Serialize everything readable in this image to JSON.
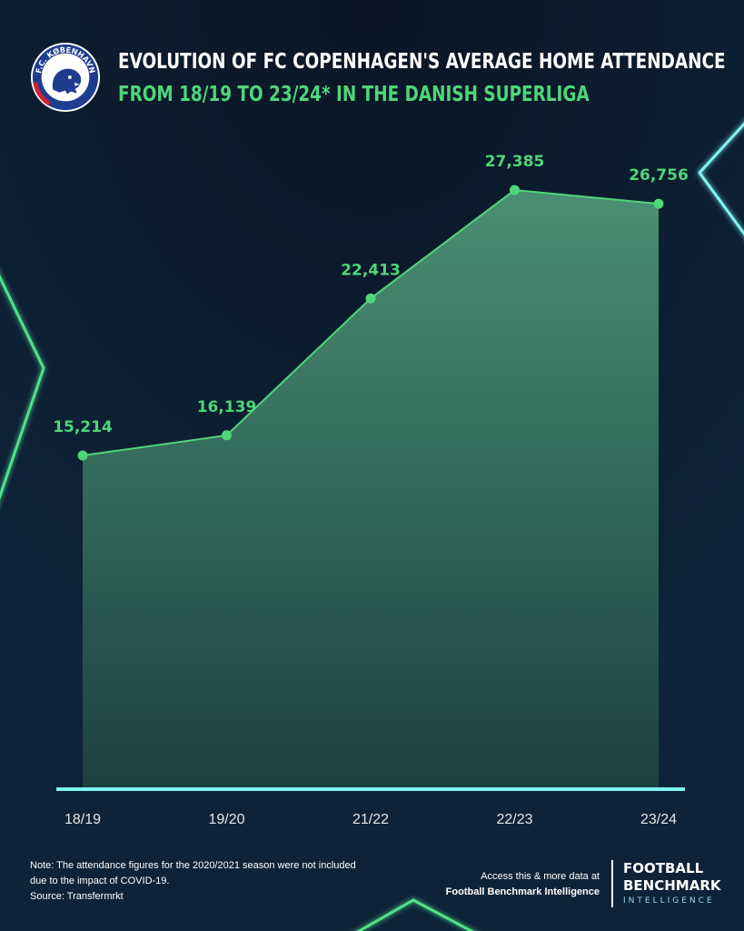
{
  "header": {
    "title": "EVOLUTION OF FC COPENHAGEN'S AVERAGE HOME ATTENDANCE",
    "subtitle": "FROM 18/19 TO 23/24* IN THE DANISH SUPERLIGA",
    "logo_text": "F.C. KØBENHAVN",
    "logo_icon": "lion-crest-icon"
  },
  "chart_data": {
    "type": "area",
    "title": "EVOLUTION OF FC COPENHAGEN'S AVERAGE HOME ATTENDANCE",
    "subtitle": "FROM 18/19 TO 23/24* IN THE DANISH SUPERLIGA",
    "categories": [
      "18/19",
      "19/20",
      "21/22",
      "22/23",
      "23/24"
    ],
    "values": [
      15214,
      16139,
      22413,
      27385,
      26756
    ],
    "value_labels": [
      "15,214",
      "16,139",
      "22,413",
      "27,385",
      "26,756"
    ],
    "xlabel": "",
    "ylabel": "",
    "ylim": [
      0,
      30000
    ],
    "grid": false,
    "legend": "none",
    "colors": {
      "line": "#4fd67a",
      "label": "#4fd67a",
      "fill_top": "#4a8f74",
      "fill_bottom": "#1c4140",
      "baseline": "#7ff5f0",
      "background": "#0e2338",
      "tick_label": "#e5e5e5"
    }
  },
  "footer": {
    "note_line1": "Note: The attendance figures for the 2020/2021 season were not included",
    "note_line2": "due to the impact of COVID-19.",
    "source": "Source: Transfermrkt",
    "access_line1": "Access this & more data at",
    "access_line2": "Football Benchmark Intelligence",
    "brand_line1": "FOOTBALL",
    "brand_line2": "BENCHMARK",
    "brand_line3": "INTELLIGENCE"
  }
}
